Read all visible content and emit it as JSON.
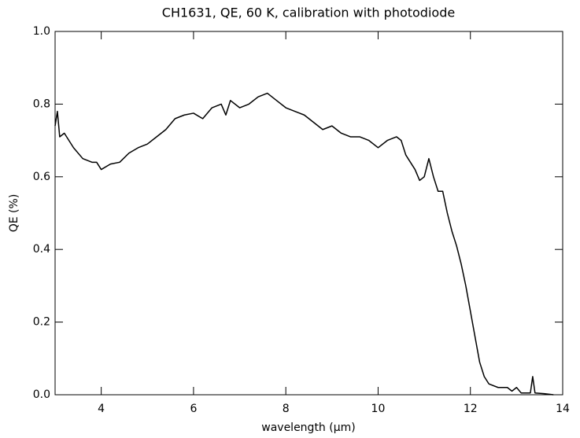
{
  "chart_data": {
    "type": "line",
    "title": "CH1631, QE, 60 K, calibration with photodiode",
    "x_label": "wavelength (μm)",
    "y_label": "QE (%)",
    "x": [
      3.0,
      3.05,
      3.1,
      3.2,
      3.4,
      3.6,
      3.8,
      3.9,
      4.0,
      4.2,
      4.4,
      4.6,
      4.8,
      5.0,
      5.2,
      5.4,
      5.6,
      5.8,
      6.0,
      6.2,
      6.4,
      6.6,
      6.7,
      6.8,
      7.0,
      7.2,
      7.4,
      7.6,
      7.8,
      8.0,
      8.2,
      8.4,
      8.6,
      8.8,
      9.0,
      9.2,
      9.4,
      9.6,
      9.8,
      10.0,
      10.2,
      10.4,
      10.5,
      10.6,
      10.7,
      10.8,
      10.9,
      11.0,
      11.1,
      11.2,
      11.3,
      11.4,
      11.5,
      11.6,
      11.7,
      11.8,
      11.9,
      12.0,
      12.1,
      12.2,
      12.3,
      12.4,
      12.6,
      12.8,
      12.9,
      13.0,
      13.1,
      13.3,
      13.35,
      13.4,
      13.6,
      13.8
    ],
    "series": [
      {
        "name": "QE",
        "color": "#000000",
        "values": [
          0.74,
          0.78,
          0.71,
          0.72,
          0.68,
          0.65,
          0.64,
          0.64,
          0.62,
          0.635,
          0.64,
          0.665,
          0.68,
          0.69,
          0.71,
          0.73,
          0.76,
          0.77,
          0.775,
          0.76,
          0.79,
          0.8,
          0.77,
          0.81,
          0.79,
          0.8,
          0.82,
          0.83,
          0.81,
          0.79,
          0.78,
          0.77,
          0.75,
          0.73,
          0.74,
          0.72,
          0.71,
          0.71,
          0.7,
          0.68,
          0.7,
          0.71,
          0.7,
          0.66,
          0.64,
          0.62,
          0.59,
          0.6,
          0.65,
          0.6,
          0.56,
          0.56,
          0.5,
          0.45,
          0.41,
          0.36,
          0.3,
          0.23,
          0.16,
          0.09,
          0.05,
          0.03,
          0.02,
          0.02,
          0.01,
          0.02,
          0.005,
          0.005,
          0.05,
          0.005,
          0.003,
          0.0
        ]
      }
    ],
    "xlim": [
      3,
      14
    ],
    "xticks": [
      4,
      6,
      8,
      10,
      12,
      14
    ],
    "ylim": [
      0,
      1
    ],
    "yticks": [
      {
        "value": 0,
        "label": "0.0"
      },
      0.2,
      0.4,
      0.6,
      0.8,
      {
        "value": 1,
        "label": "1.0"
      }
    ]
  }
}
